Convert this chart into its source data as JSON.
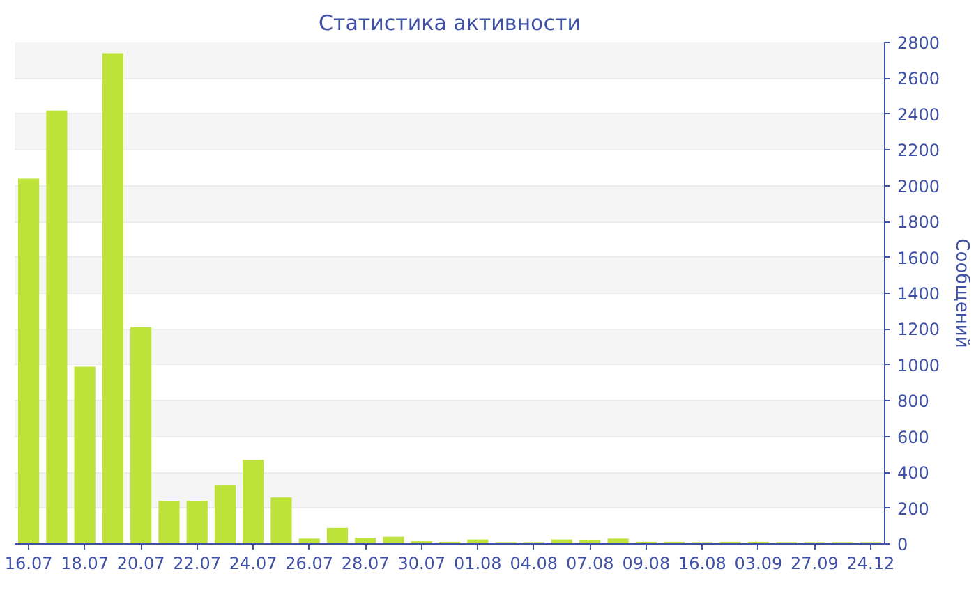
{
  "chart_data": {
    "type": "bar",
    "title": "Статистика активности",
    "ylabel": "Сообщений",
    "categories": [
      "16.07",
      null,
      "18.07",
      null,
      "20.07",
      null,
      "22.07",
      null,
      "24.07",
      null,
      "26.07",
      null,
      "28.07",
      null,
      "30.07",
      null,
      "01.08",
      null,
      "04.08",
      null,
      "07.08",
      null,
      "09.08",
      null,
      "16.08",
      null,
      "03.09",
      null,
      "27.09",
      null,
      "24.12"
    ],
    "values": [
      2040,
      2420,
      990,
      2740,
      1210,
      240,
      240,
      330,
      470,
      260,
      30,
      90,
      35,
      40,
      15,
      12,
      25,
      10,
      10,
      25,
      20,
      30,
      12,
      12,
      10,
      12,
      12,
      10,
      10,
      10,
      10
    ],
    "color": "#bde23a",
    "ylim": [
      0,
      2800
    ],
    "yticks": [
      0,
      200,
      400,
      600,
      800,
      1000,
      1200,
      1400,
      1600,
      1800,
      2000,
      2200,
      2400,
      2600,
      2800
    ],
    "grid": "y"
  }
}
